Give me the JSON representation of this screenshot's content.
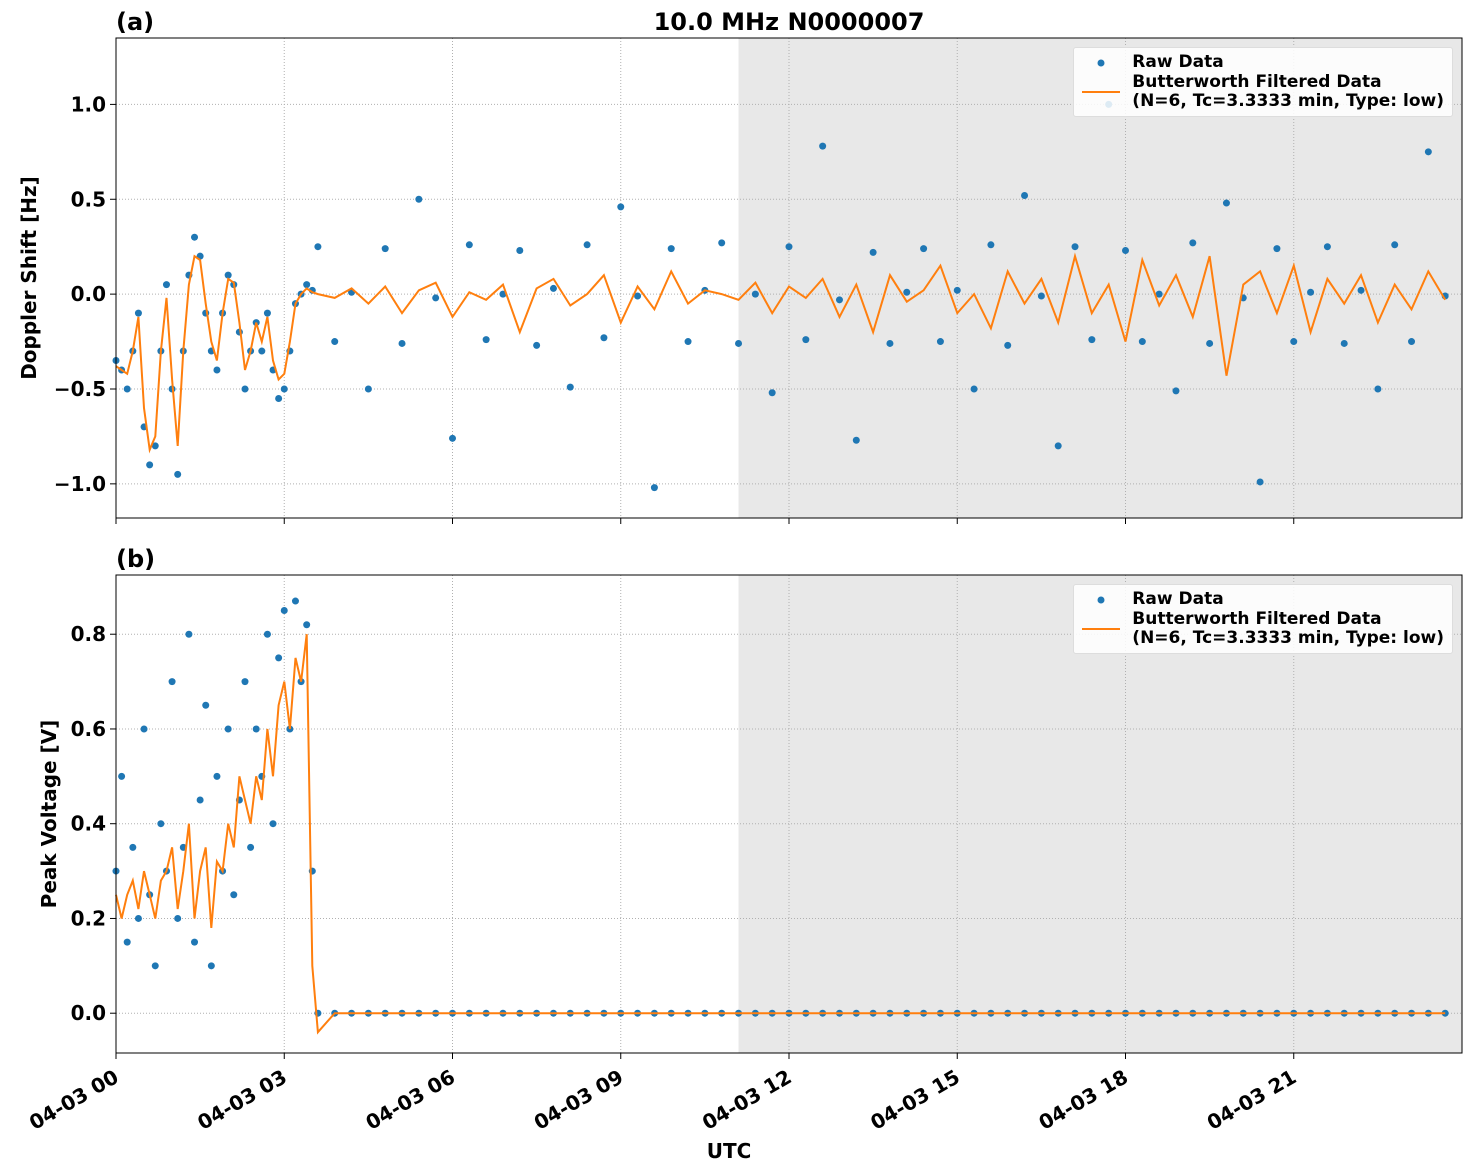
{
  "chart_data": [
    {
      "type": "line",
      "panel_label": "(a)",
      "title": "10.0 MHz N0000007",
      "ylabel": "Doppler Shift [Hz]",
      "grid": true,
      "legend": "upper right",
      "shade": [
        11.1,
        24
      ],
      "xlim": [
        0,
        24
      ],
      "ylim": [
        -1.18,
        1.35
      ],
      "xticks": [
        0,
        3,
        6,
        9,
        12,
        15,
        18,
        21
      ],
      "yticks": [
        {
          "value": -1,
          "label": "−1.0"
        },
        {
          "value": -0.5,
          "label": "−0.5"
        },
        {
          "value": 0,
          "label": "0.0"
        },
        {
          "value": 0.5,
          "label": "0.5"
        },
        {
          "value": 1,
          "label": "1.0"
        }
      ],
      "x": [
        0,
        0.1,
        0.2,
        0.3,
        0.4,
        0.5,
        0.6,
        0.7,
        0.8,
        0.9,
        1.0,
        1.1,
        1.2,
        1.3,
        1.4,
        1.5,
        1.6,
        1.7,
        1.8,
        1.9,
        2.0,
        2.1,
        2.2,
        2.3,
        2.4,
        2.5,
        2.6,
        2.7,
        2.8,
        2.9,
        3.0,
        3.1,
        3.2,
        3.3,
        3.4,
        3.5,
        3.6,
        3.9,
        4.2,
        4.5,
        4.8,
        5.1,
        5.4,
        5.7,
        6.0,
        6.3,
        6.6,
        6.9,
        7.2,
        7.5,
        7.8,
        8.1,
        8.4,
        8.7,
        9.0,
        9.3,
        9.6,
        9.9,
        10.2,
        10.5,
        10.8,
        11.1,
        11.4,
        11.7,
        12.0,
        12.3,
        12.6,
        12.9,
        13.2,
        13.5,
        13.8,
        14.1,
        14.4,
        14.7,
        15.0,
        15.3,
        15.6,
        15.9,
        16.2,
        16.5,
        16.8,
        17.1,
        17.4,
        17.7,
        18.0,
        18.3,
        18.6,
        18.9,
        19.2,
        19.5,
        19.8,
        20.1,
        20.4,
        20.7,
        21.0,
        21.3,
        21.6,
        21.9,
        22.2,
        22.5,
        22.8,
        23.1,
        23.4,
        23.7
      ],
      "series": [
        {
          "name": "Raw Data",
          "style": "markers",
          "color": "#1f77b4",
          "values": [
            -0.35,
            -0.4,
            -0.5,
            -0.3,
            -0.1,
            -0.7,
            -0.9,
            -0.8,
            -0.3,
            0.05,
            -0.5,
            -0.95,
            -0.3,
            0.1,
            0.3,
            0.2,
            -0.1,
            -0.3,
            -0.4,
            -0.1,
            0.1,
            0.05,
            -0.2,
            -0.5,
            -0.3,
            -0.15,
            -0.3,
            -0.1,
            -0.4,
            -0.55,
            -0.5,
            -0.3,
            -0.05,
            0.0,
            0.05,
            0.02,
            0.25,
            -0.25,
            0.01,
            -0.5,
            0.24,
            -0.26,
            0.5,
            -0.02,
            -0.76,
            0.26,
            -0.24,
            0.0,
            0.23,
            -0.27,
            0.03,
            -0.49,
            0.26,
            -0.23,
            0.46,
            -0.01,
            -1.02,
            0.24,
            -0.25,
            0.02,
            0.27,
            -0.26,
            0.0,
            -0.52,
            0.25,
            -0.24,
            0.78,
            -0.03,
            -0.77,
            0.22,
            -0.26,
            0.01,
            0.24,
            -0.25,
            0.02,
            -0.5,
            0.26,
            -0.27,
            0.52,
            -0.01,
            -0.8,
            0.25,
            -0.24,
            1.0,
            0.23,
            -0.25,
            0.0,
            -0.51,
            0.27,
            -0.26,
            0.48,
            -0.02,
            -0.99,
            0.24,
            -0.25,
            0.01,
            0.25,
            -0.26,
            0.02,
            -0.5,
            0.26,
            -0.25,
            0.75,
            -0.01
          ]
        },
        {
          "name": "Butterworth Filtered Data\n(N=6, Tc=3.3333 min, Type: low)",
          "style": "line",
          "color": "#ff7f0e",
          "values": [
            -0.38,
            -0.4,
            -0.42,
            -0.3,
            -0.12,
            -0.6,
            -0.82,
            -0.75,
            -0.3,
            -0.02,
            -0.45,
            -0.8,
            -0.3,
            0.05,
            0.2,
            0.18,
            -0.05,
            -0.25,
            -0.35,
            -0.1,
            0.08,
            0.06,
            -0.15,
            -0.4,
            -0.3,
            -0.15,
            -0.25,
            -0.12,
            -0.35,
            -0.45,
            -0.42,
            -0.25,
            -0.05,
            0.0,
            0.03,
            0.01,
            0.0,
            -0.02,
            0.03,
            -0.05,
            0.04,
            -0.1,
            0.02,
            0.06,
            -0.12,
            0.01,
            -0.03,
            0.05,
            -0.2,
            0.03,
            0.08,
            -0.06,
            0.0,
            0.1,
            -0.15,
            0.04,
            -0.08,
            0.12,
            -0.05,
            0.02,
            0.0,
            -0.03,
            0.06,
            -0.1,
            0.04,
            -0.02,
            0.08,
            -0.12,
            0.05,
            -0.2,
            0.1,
            -0.04,
            0.02,
            0.15,
            -0.1,
            0.0,
            -0.18,
            0.12,
            -0.05,
            0.08,
            -0.15,
            0.2,
            -0.1,
            0.05,
            -0.25,
            0.18,
            -0.06,
            0.1,
            -0.12,
            0.2,
            -0.43,
            0.05,
            0.12,
            -0.1,
            0.15,
            -0.2,
            0.08,
            -0.05,
            0.1,
            -0.15,
            0.05,
            -0.08,
            0.12,
            -0.03
          ]
        }
      ]
    },
    {
      "type": "line",
      "panel_label": "(b)",
      "ylabel": "Peak Voltage [V]",
      "xlabel": "UTC",
      "grid": true,
      "legend": "upper right",
      "shade": [
        11.1,
        24
      ],
      "xlim": [
        0,
        24
      ],
      "ylim": [
        -0.084,
        0.925
      ],
      "xticks": [
        {
          "value": 0,
          "label": "04-03 00"
        },
        {
          "value": 3,
          "label": "04-03 03"
        },
        {
          "value": 6,
          "label": "04-03 06"
        },
        {
          "value": 9,
          "label": "04-03 09"
        },
        {
          "value": 12,
          "label": "04-03 12"
        },
        {
          "value": 15,
          "label": "04-03 15"
        },
        {
          "value": 18,
          "label": "04-03 18"
        },
        {
          "value": 21,
          "label": "04-03 21"
        }
      ],
      "yticks": [
        {
          "value": 0,
          "label": "0.0"
        },
        {
          "value": 0.2,
          "label": "0.2"
        },
        {
          "value": 0.4,
          "label": "0.4"
        },
        {
          "value": 0.6,
          "label": "0.6"
        },
        {
          "value": 0.8,
          "label": "0.8"
        }
      ],
      "x": [
        0,
        0.1,
        0.2,
        0.3,
        0.4,
        0.5,
        0.6,
        0.7,
        0.8,
        0.9,
        1.0,
        1.1,
        1.2,
        1.3,
        1.4,
        1.5,
        1.6,
        1.7,
        1.8,
        1.9,
        2.0,
        2.1,
        2.2,
        2.3,
        2.4,
        2.5,
        2.6,
        2.7,
        2.8,
        2.9,
        3.0,
        3.1,
        3.2,
        3.3,
        3.4,
        3.5,
        3.6,
        3.9,
        4.2,
        4.5,
        4.8,
        5.1,
        5.4,
        5.7,
        6.0,
        6.3,
        6.6,
        6.9,
        7.2,
        7.5,
        7.8,
        8.1,
        8.4,
        8.7,
        9.0,
        9.3,
        9.6,
        9.9,
        10.2,
        10.5,
        10.8,
        11.1,
        11.4,
        11.7,
        12.0,
        12.3,
        12.6,
        12.9,
        13.2,
        13.5,
        13.8,
        14.1,
        14.4,
        14.7,
        15.0,
        15.3,
        15.6,
        15.9,
        16.2,
        16.5,
        16.8,
        17.1,
        17.4,
        17.7,
        18.0,
        18.3,
        18.6,
        18.9,
        19.2,
        19.5,
        19.8,
        20.1,
        20.4,
        20.7,
        21.0,
        21.3,
        21.6,
        21.9,
        22.2,
        22.5,
        22.8,
        23.1,
        23.4,
        23.7
      ],
      "series": [
        {
          "name": "Raw Data",
          "style": "markers",
          "color": "#1f77b4",
          "values": [
            0.3,
            0.5,
            0.15,
            0.35,
            0.2,
            0.6,
            0.25,
            0.1,
            0.4,
            0.3,
            0.7,
            0.2,
            0.35,
            0.8,
            0.15,
            0.45,
            0.65,
            0.1,
            0.5,
            0.3,
            0.6,
            0.25,
            0.45,
            0.7,
            0.35,
            0.6,
            0.5,
            0.8,
            0.4,
            0.75,
            0.85,
            0.6,
            0.87,
            0.7,
            0.82,
            0.3,
            0,
            0,
            0,
            0,
            0,
            0,
            0,
            0,
            0,
            0,
            0,
            0,
            0,
            0,
            0,
            0,
            0,
            0,
            0,
            0,
            0,
            0,
            0,
            0,
            0,
            0,
            0,
            0,
            0,
            0,
            0,
            0,
            0,
            0,
            0,
            0,
            0,
            0,
            0,
            0,
            0,
            0,
            0,
            0,
            0,
            0,
            0,
            0,
            0,
            0,
            0,
            0,
            0,
            0,
            0,
            0,
            0,
            0,
            0,
            0,
            0,
            0,
            0,
            0,
            0,
            0,
            0,
            0
          ]
        },
        {
          "name": "Butterworth Filtered Data\n(N=6, Tc=3.3333 min, Type: low)",
          "style": "line",
          "color": "#ff7f0e",
          "values": [
            0.25,
            0.2,
            0.25,
            0.28,
            0.22,
            0.3,
            0.25,
            0.2,
            0.28,
            0.3,
            0.35,
            0.22,
            0.3,
            0.4,
            0.2,
            0.3,
            0.35,
            0.18,
            0.32,
            0.3,
            0.4,
            0.35,
            0.5,
            0.45,
            0.4,
            0.5,
            0.45,
            0.6,
            0.5,
            0.65,
            0.7,
            0.6,
            0.75,
            0.7,
            0.8,
            0.1,
            -0.04,
            0,
            0,
            0,
            0,
            0,
            0,
            0,
            0,
            0,
            0,
            0,
            0,
            0,
            0,
            0,
            0,
            0,
            0,
            0,
            0,
            0,
            0,
            0,
            0,
            0,
            0,
            0,
            0,
            0,
            0,
            0,
            0,
            0,
            0,
            0,
            0,
            0,
            0,
            0,
            0,
            0,
            0,
            0,
            0,
            0,
            0,
            0,
            0,
            0,
            0,
            0,
            0,
            0,
            0,
            0,
            0,
            0,
            0,
            0,
            0,
            0,
            0,
            0,
            0,
            0,
            0,
            0
          ]
        }
      ]
    }
  ]
}
